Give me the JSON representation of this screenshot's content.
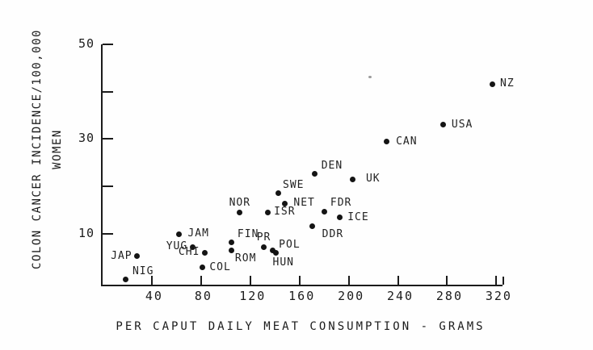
{
  "figure": {
    "y_axis": {
      "title_line1": "COLON CANCER INCIDENCE/100,000",
      "title_line2": "WOMEN",
      "ticks": [
        {
          "value": 50,
          "label": "50"
        },
        {
          "value": 40,
          "label": ""
        },
        {
          "value": 30,
          "label": "30"
        },
        {
          "value": 20,
          "label": ""
        },
        {
          "value": 10,
          "label": "10"
        }
      ]
    },
    "x_axis": {
      "title": "PER CAPUT DAILY MEAT CONSUMPTION - GRAMS",
      "ticks": [
        {
          "value": 40,
          "label": "40"
        },
        {
          "value": 80,
          "label": "80"
        },
        {
          "value": 120,
          "label": "120"
        },
        {
          "value": 160,
          "label": "160"
        },
        {
          "value": 200,
          "label": "200"
        },
        {
          "value": 240,
          "label": "240"
        },
        {
          "value": 280,
          "label": "280"
        },
        {
          "value": 320,
          "label": "320"
        }
      ]
    }
  },
  "chart_data": {
    "type": "scatter",
    "title": "",
    "xlabel": "PER CAPUT DAILY MEAT CONSUMPTION - GRAMS",
    "ylabel": "COLON CANCER INCIDENCE/100,000 WOMEN",
    "xlim": [
      0,
      325
    ],
    "ylim": [
      -0.8,
      50
    ],
    "grid": false,
    "points": [
      {
        "label": "NIG",
        "x": 19,
        "y": 0.3,
        "label_pos": "above-right",
        "dx": 6
      },
      {
        "label": "JAP",
        "x": 28,
        "y": 5.2,
        "label_pos": "left"
      },
      {
        "label": "JAM",
        "x": 62,
        "y": 9.9,
        "label_pos": "right",
        "dx": 5
      },
      {
        "label": "YUG",
        "x": 73,
        "y": 7.2,
        "label_pos": "left"
      },
      {
        "label": "CHI",
        "x": 83,
        "y": 6.0,
        "label_pos": "left"
      },
      {
        "label": "COL",
        "x": 81,
        "y": 2.8,
        "label_pos": "right",
        "dx": 3
      },
      {
        "label": "FIN",
        "x": 105,
        "y": 8.1,
        "label_pos": "above-right",
        "dx": 5
      },
      {
        "label": "ROM",
        "x": 105,
        "y": 6.5,
        "label_pos": "below-right"
      },
      {
        "label": "NOR",
        "x": 111.5,
        "y": 14.5,
        "label_pos": "above"
      },
      {
        "label": "PR",
        "x": 131,
        "y": 7.2,
        "label_pos": "above"
      },
      {
        "label": "ISR",
        "x": 134,
        "y": 14.5,
        "label_pos": "right",
        "dx": 2
      },
      {
        "label": "POL",
        "x": 138,
        "y": 6.5,
        "label_pos": "right",
        "dx": 2,
        "dy": -6
      },
      {
        "label": "HUN",
        "x": 141,
        "y": 5.9,
        "label_pos": "below",
        "dx": 9
      },
      {
        "label": "SWE",
        "x": 142.5,
        "y": 18.5,
        "label_pos": "above-right",
        "dx": 4
      },
      {
        "label": "NET",
        "x": 148,
        "y": 16.4,
        "label_pos": "right",
        "dx": 5
      },
      {
        "label": "DDR",
        "x": 170.5,
        "y": 11.6,
        "label_pos": "below-right",
        "dx": 8
      },
      {
        "label": "DEN",
        "x": 172.5,
        "y": 22.6,
        "label_pos": "above-right",
        "dx": 6
      },
      {
        "label": "FDR",
        "x": 180.5,
        "y": 14.7,
        "label_pos": "above-right",
        "dx": 5
      },
      {
        "label": "ICE",
        "x": 192.5,
        "y": 13.4,
        "label_pos": "right",
        "dx": 4
      },
      {
        "label": "UK",
        "x": 203.5,
        "y": 21.5,
        "label_pos": "right",
        "dx": 10
      },
      {
        "label": "CAN",
        "x": 230.5,
        "y": 29.4,
        "label_pos": "right",
        "dx": 6
      },
      {
        "label": "USA",
        "x": 277,
        "y": 33.0,
        "label_pos": "right",
        "dx": 4
      },
      {
        "label": "NZ",
        "x": 316.5,
        "y": 41.6,
        "label_pos": "right",
        "dx": 4
      }
    ],
    "artifacts": [
      {
        "x": 217,
        "y": 43.2
      }
    ]
  }
}
